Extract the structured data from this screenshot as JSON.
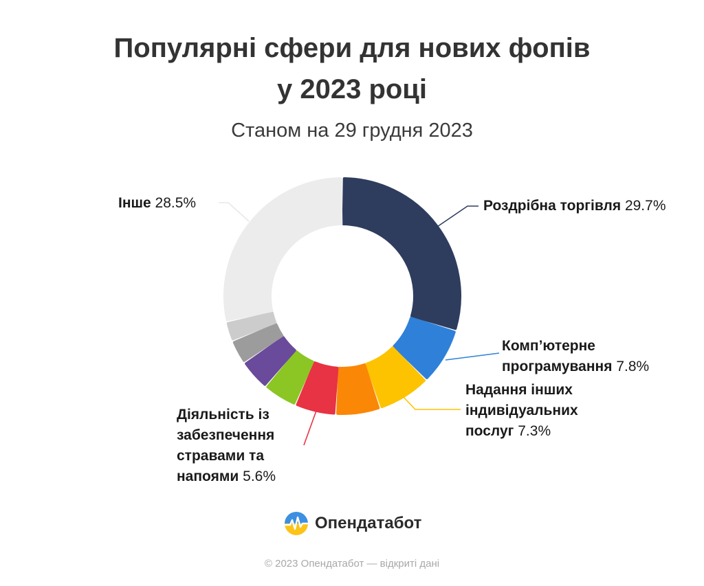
{
  "header": {
    "title_line1": "Популярні сфери для нових фопів",
    "title_line2": "у 2023 році",
    "subtitle": "Станом на 29 грудня 2023"
  },
  "chart_data": {
    "type": "pie",
    "title": "Популярні сфери для нових фопів у 2023 році",
    "subtitle": "Станом на 29 грудня 2023",
    "unit": "%",
    "slices": [
      {
        "label": "Роздрібна торгівля",
        "value": 29.7,
        "color": "#2e3d5e",
        "labeled": true
      },
      {
        "label": "Комп’ютерне програмування",
        "value": 7.8,
        "color": "#2f80d8",
        "labeled": true
      },
      {
        "label": "Надання інших індивідуальних послуг",
        "value": 7.3,
        "color": "#fdc300",
        "labeled": true
      },
      {
        "label": "",
        "value": 6.1,
        "color": "#fb8707",
        "labeled": false
      },
      {
        "label": "Діяльність із забезпечення стравами та напоями",
        "value": 5.6,
        "color": "#e73343",
        "labeled": true
      },
      {
        "label": "",
        "value": 4.7,
        "color": "#8bc624",
        "labeled": false
      },
      {
        "label": "",
        "value": 4.3,
        "color": "#6a4a9a",
        "labeled": false
      },
      {
        "label": "",
        "value": 3.3,
        "color": "#9c9c9c",
        "labeled": false
      },
      {
        "label": "",
        "value": 2.7,
        "color": "#cccccc",
        "labeled": false
      },
      {
        "label": "Інше",
        "value": 28.5,
        "color": "#ececec",
        "labeled": true
      }
    ]
  },
  "labels": {
    "retail": {
      "name": "Роздрібна торгівля",
      "pct": "29.7%"
    },
    "programming": {
      "name_l1": "Комп’ютерне",
      "name_l2": "програмування",
      "pct": "7.8%"
    },
    "services": {
      "name_l1": "Надання інших",
      "name_l2": "індивідуальних",
      "name_l3": "послуг",
      "pct": "7.3%"
    },
    "food": {
      "name_l1": "Діяльність із",
      "name_l2": "забезпечення",
      "name_l3": "стравами та",
      "name_l4": "напоями",
      "pct": "5.6%"
    },
    "other": {
      "name": "Інше",
      "pct": "28.5%"
    }
  },
  "brand": {
    "name": "Опендатабот"
  },
  "footer": {
    "text": "© 2023 Опендатабот — відкриті дані"
  }
}
